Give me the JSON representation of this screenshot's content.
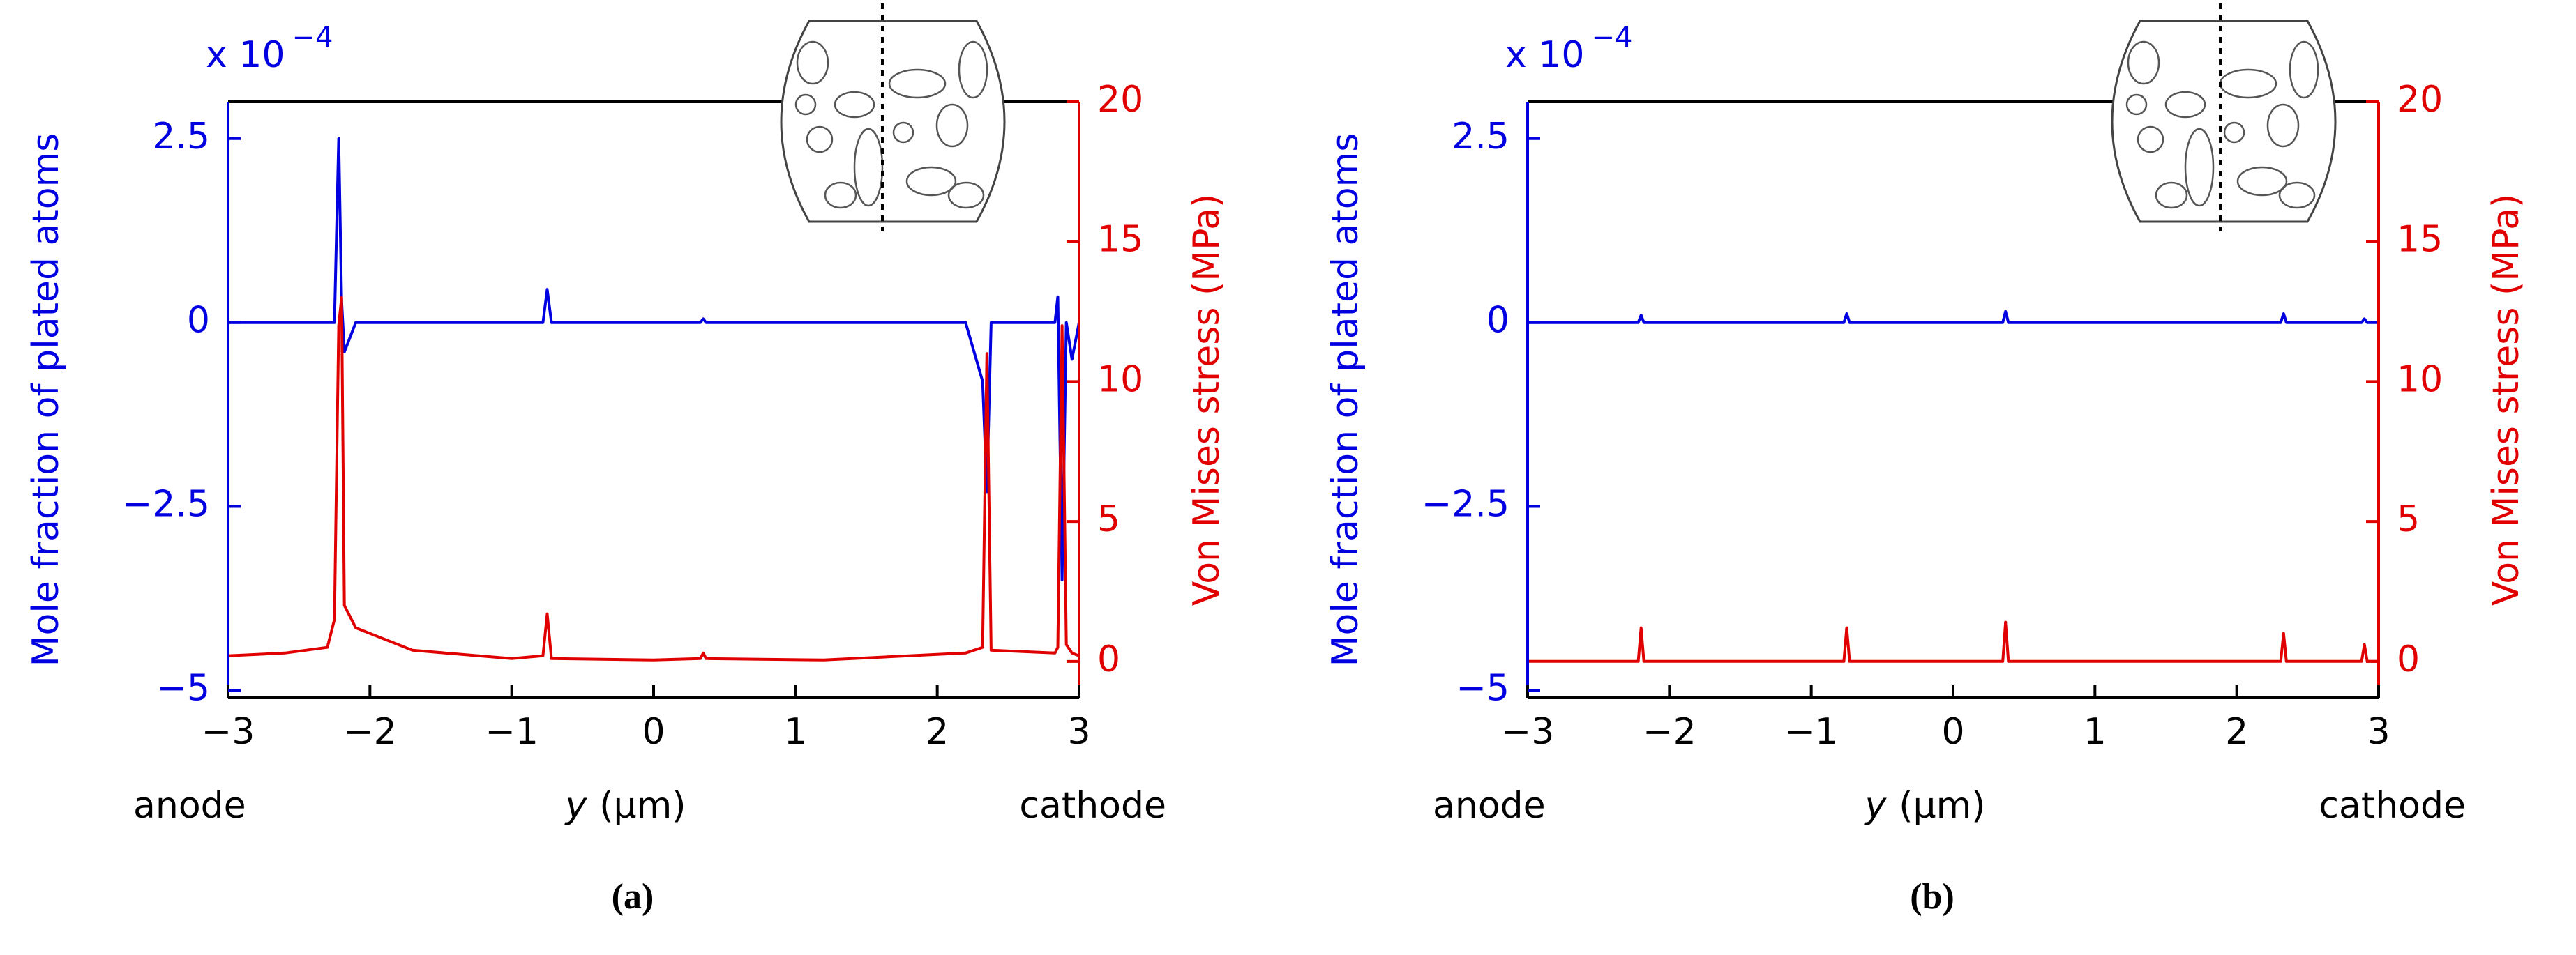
{
  "chart_data": [
    {
      "type": "line",
      "ylabel": "Mole fraction of plated atoms",
      "y2label": "Von Mises stress (MPa)",
      "y_multiplier": {
        "base": "x 10",
        "exponent": "−4"
      },
      "xlabel_var": "y",
      "xlabel_unit": "(μm)",
      "left_note": "anode",
      "right_note": "cathode",
      "panel_label": "(a)",
      "x": [
        -3,
        -2.6,
        -2.3,
        -2.25,
        -2.22,
        -2.2,
        -2.18,
        -2.1,
        -2.0,
        -1.7,
        -1.0,
        -0.78,
        -0.75,
        -0.72,
        0,
        0.33,
        0.35,
        0.37,
        1.2,
        2.2,
        2.32,
        2.35,
        2.38,
        2.83,
        2.85,
        2.88,
        2.91,
        2.95,
        3
      ],
      "series": [
        {
          "color": "#0000e0",
          "axis": "y",
          "values": [
            0,
            0,
            0,
            0,
            2.5,
            0.3,
            -0.4,
            0,
            0,
            0,
            0,
            0,
            0.45,
            0,
            0,
            0,
            0.05,
            0,
            0,
            0,
            -0.8,
            -2.3,
            0,
            0,
            0.35,
            -3.5,
            0,
            -0.5,
            0
          ]
        },
        {
          "color": "#e00000",
          "axis": "y2",
          "values": [
            0.2,
            0.3,
            0.5,
            1.5,
            12,
            13,
            2,
            1.2,
            1.0,
            0.4,
            0.1,
            0.2,
            1.7,
            0.1,
            0.05,
            0.1,
            0.3,
            0.1,
            0.05,
            0.3,
            0.5,
            11,
            0.4,
            0.3,
            0.5,
            12,
            0.6,
            0.3,
            0.2
          ]
        }
      ],
      "xlim": [
        -3,
        3
      ],
      "xticks": [
        {
          "value": -3,
          "label": "−3"
        },
        {
          "value": -2,
          "label": "−2"
        },
        {
          "value": -1,
          "label": "−1"
        },
        0,
        1,
        2,
        3
      ],
      "ylim": [
        -5.1,
        3
      ],
      "yticks": [
        {
          "value": -5,
          "label": "−5"
        },
        {
          "value": -2.5,
          "label": "−2.5"
        },
        0,
        2.5
      ],
      "y2lim": [
        -1.3,
        20
      ],
      "y2ticks": [
        0,
        5,
        10,
        15,
        20
      ]
    },
    {
      "type": "line",
      "ylabel": "Mole fraction of plated atoms",
      "y2label": "Von Mises stress (MPa)",
      "y_multiplier": {
        "base": "x 10",
        "exponent": "−4"
      },
      "xlabel_var": "y",
      "xlabel_unit": "(μm)",
      "left_note": "anode",
      "right_note": "cathode",
      "panel_label": "(b)",
      "x": [
        -3,
        -2.22,
        -2.2,
        -2.18,
        -0.77,
        -0.75,
        -0.73,
        0.35,
        0.37,
        0.39,
        2.31,
        2.33,
        2.35,
        2.88,
        2.9,
        2.92,
        3
      ],
      "series": [
        {
          "color": "#0000e0",
          "axis": "y",
          "values": [
            0,
            0,
            0.1,
            0,
            0,
            0.12,
            0,
            0,
            0.15,
            0,
            0,
            0.12,
            0,
            0,
            0.05,
            0,
            0
          ]
        },
        {
          "color": "#e00000",
          "axis": "y2",
          "values": [
            0,
            0,
            1.2,
            0,
            0,
            1.2,
            0,
            0,
            1.4,
            0,
            0,
            1.0,
            0,
            0,
            0.6,
            0,
            0
          ]
        }
      ],
      "xlim": [
        -3,
        3
      ],
      "xticks": [
        {
          "value": -3,
          "label": "−3"
        },
        {
          "value": -2,
          "label": "−2"
        },
        {
          "value": -1,
          "label": "−1"
        },
        0,
        1,
        2,
        3
      ],
      "ylim": [
        -5.1,
        3
      ],
      "yticks": [
        {
          "value": -5,
          "label": "−5"
        },
        {
          "value": -2.5,
          "label": "−2.5"
        },
        0,
        2.5
      ],
      "y2lim": [
        -1.3,
        20
      ],
      "y2ticks": [
        0,
        5,
        10,
        15,
        20
      ]
    }
  ]
}
